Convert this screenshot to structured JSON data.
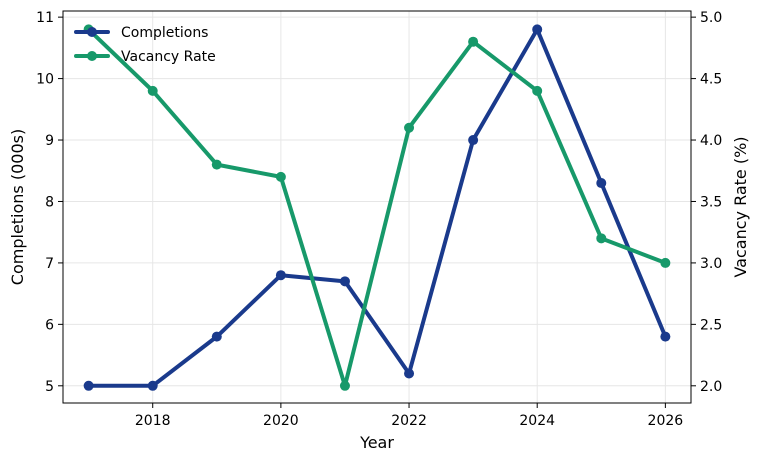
{
  "chart_data": {
    "type": "line",
    "x": [
      2017,
      2018,
      2019,
      2020,
      2021,
      2022,
      2023,
      2024,
      2025,
      2026
    ],
    "xlabel": "Year",
    "xlim": [
      2016.6,
      2026.4
    ],
    "xticks": [
      2018,
      2020,
      2022,
      2024,
      2026
    ],
    "grid": true,
    "legend_position": "top-left",
    "y_left": {
      "label": "Completions (000s)",
      "lim": [
        4.72,
        11.1
      ],
      "ticks": [
        5,
        6,
        7,
        8,
        9,
        10,
        11
      ]
    },
    "y_right": {
      "label": "Vacancy Rate (%)",
      "lim": [
        1.86,
        5.05
      ],
      "ticks": [
        2.0,
        2.5,
        3.0,
        3.5,
        4.0,
        4.5,
        5.0
      ]
    },
    "series": [
      {
        "name": "Completions",
        "axis": "left",
        "color": "#1a3a8c",
        "values": [
          5.0,
          5.0,
          5.8,
          6.8,
          6.7,
          5.2,
          9.0,
          10.8,
          8.3,
          5.8
        ]
      },
      {
        "name": "Vacancy Rate",
        "axis": "right",
        "color": "#17996a",
        "values": [
          4.9,
          4.4,
          3.8,
          3.7,
          2.0,
          4.1,
          4.8,
          4.4,
          3.2,
          3.0
        ]
      }
    ]
  }
}
